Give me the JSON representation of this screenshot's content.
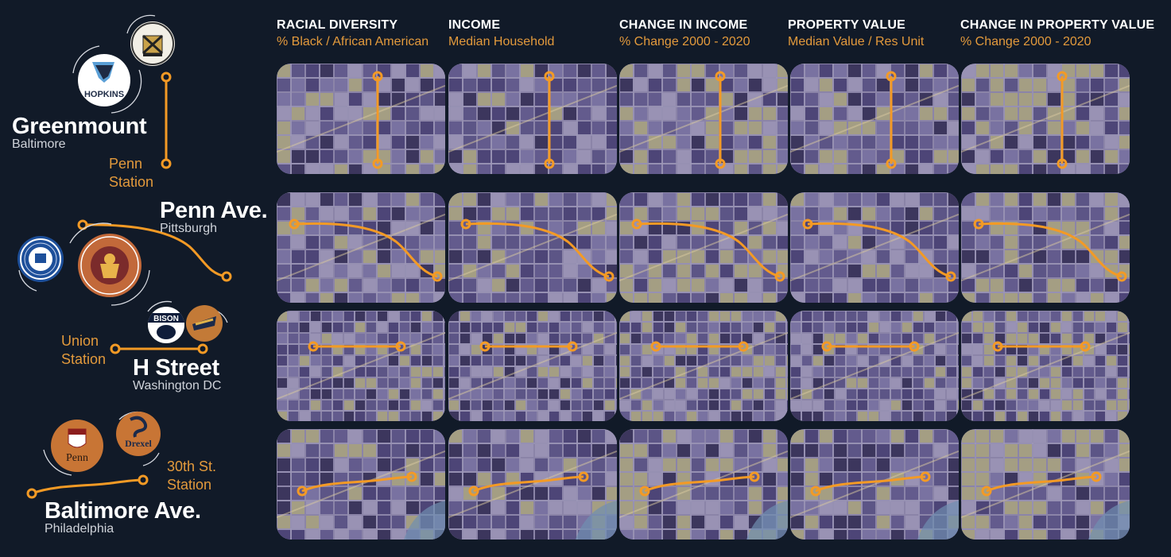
{
  "columns": [
    {
      "title": "RACIAL DIVERSITY",
      "subtitle": "% Black / African American"
    },
    {
      "title": "INCOME",
      "subtitle": "Median Household"
    },
    {
      "title": "CHANGE IN INCOME",
      "subtitle": "% Change 2000 - 2020"
    },
    {
      "title": "PROPERTY VALUE",
      "subtitle": "Median Value / Res Unit"
    },
    {
      "title": "CHANGE IN PROPERTY VALUE",
      "subtitle": "% Change 2000 - 2020"
    }
  ],
  "corridors": [
    {
      "name": "Greenmount",
      "city": "Baltimore",
      "station": [
        "Penn",
        "Station"
      ],
      "logos": [
        "johns-hopkins-logo",
        "university-of-maryland-logo"
      ]
    },
    {
      "name": "Penn Ave.",
      "city": "Pittsburgh",
      "station": [],
      "logos": [
        "university-of-pittsburgh-logo",
        "carnegie-mellon-logo"
      ]
    },
    {
      "name": "H Street",
      "city": "Washington DC",
      "station": [
        "Union",
        "Station"
      ],
      "logos": [
        "howard-bison-logo",
        "gallaudet-logo"
      ]
    },
    {
      "name": "Baltimore Ave.",
      "city": "Philadelphia",
      "station": [
        "30th St.",
        "Station"
      ],
      "logos": [
        "penn-logo",
        "drexel-logo"
      ]
    }
  ],
  "logo_text": {
    "hopkins": "HOPKINS",
    "bison": "BISON",
    "penn": "Penn",
    "drexel": "Drexel"
  },
  "colors": {
    "background": "#111a28",
    "accent": "#f39a25",
    "subtitle": "#e39a3c",
    "map_base": "#8b84a8",
    "map_dark": "#2e2850",
    "map_mid": "#5c5488",
    "map_tan": "#a8a27c"
  }
}
